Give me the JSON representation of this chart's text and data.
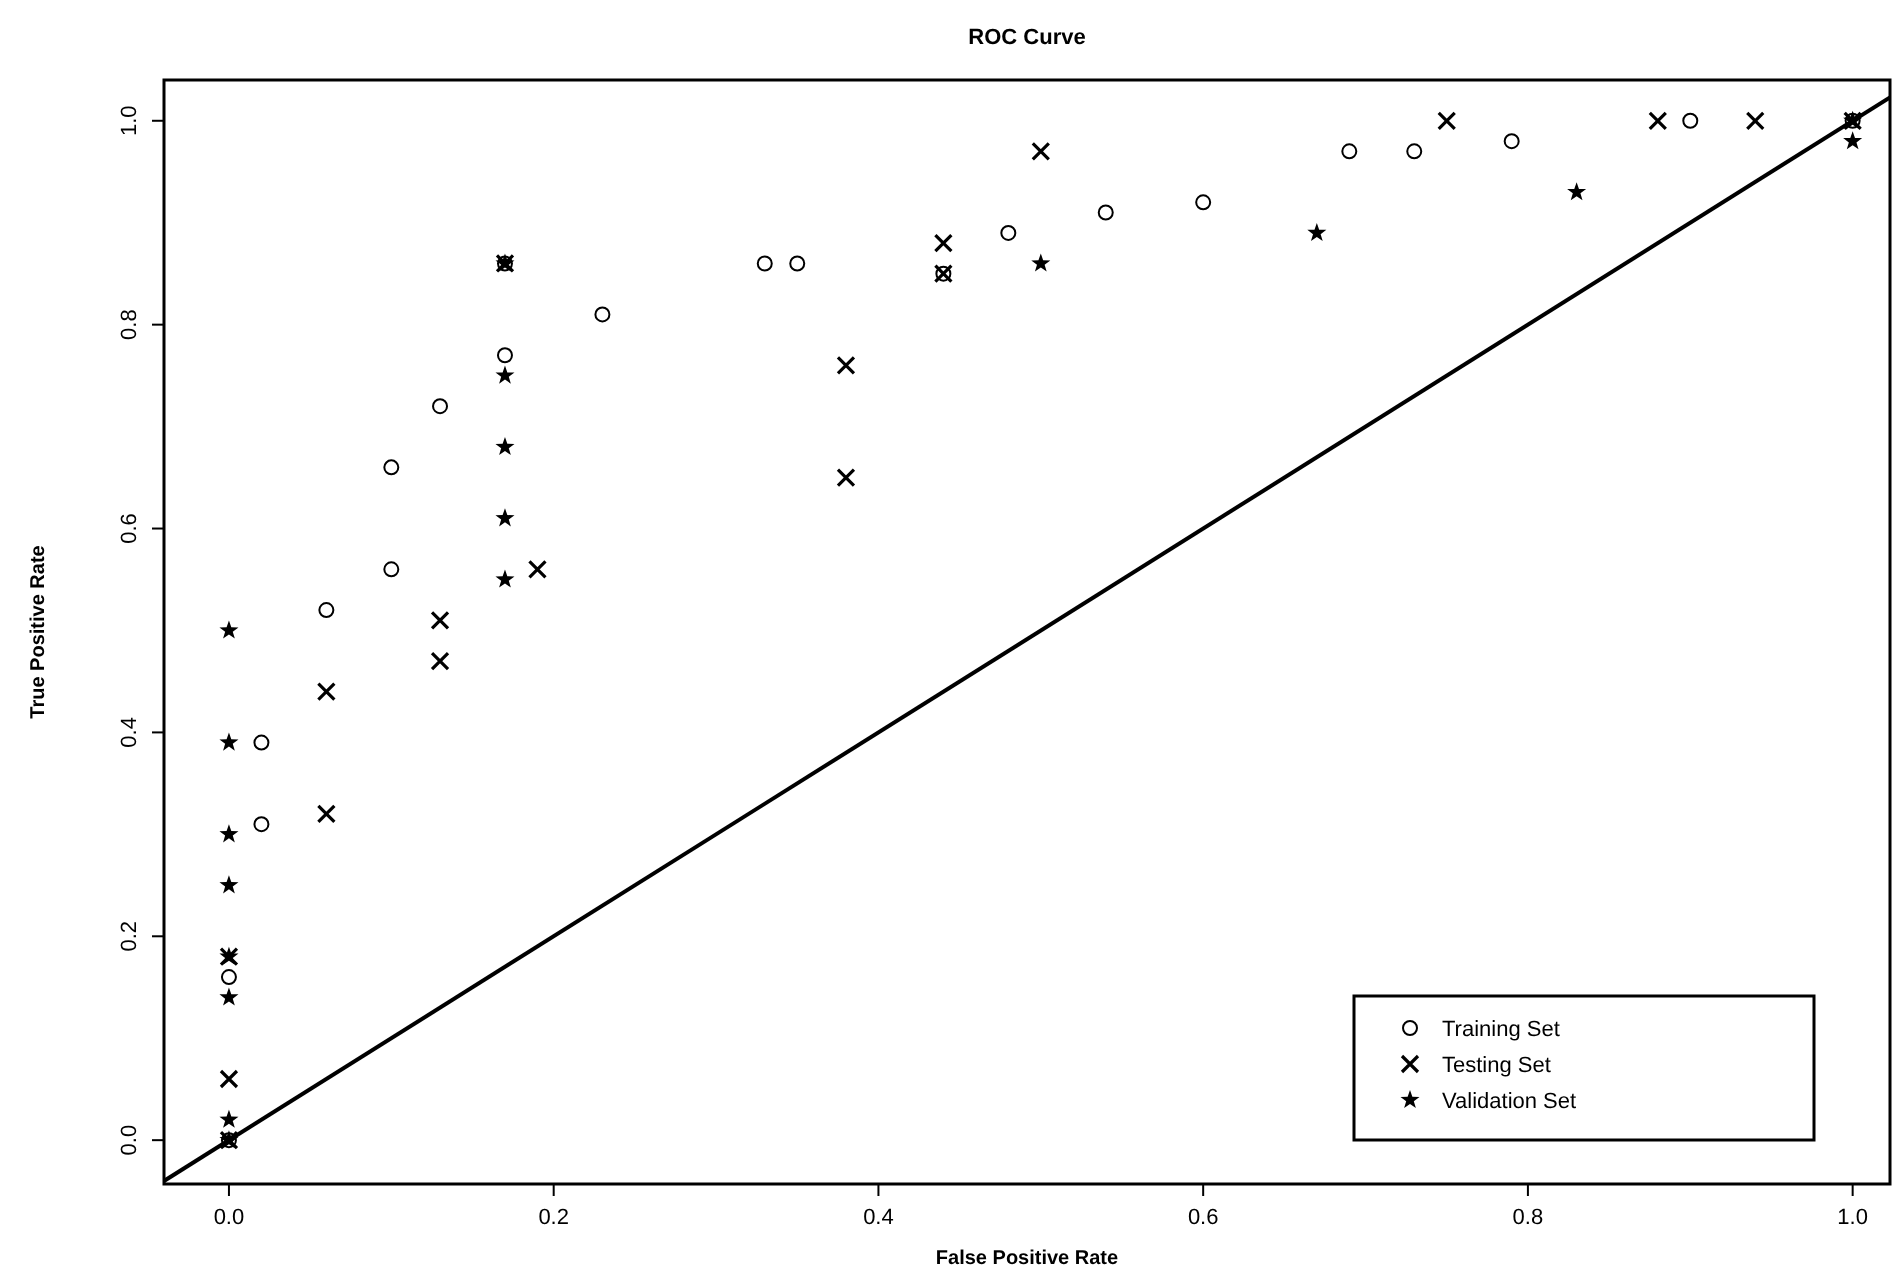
{
  "chart_data": {
    "type": "scatter",
    "title": "ROC Curve",
    "xlabel": "False Positive Rate",
    "ylabel": "True Positive Rate",
    "xlim": [
      -0.04,
      1.023
    ],
    "ylim": [
      -0.043,
      1.04
    ],
    "xticks": [
      {
        "value": 0,
        "label": "0.0"
      },
      0.2,
      0.4,
      0.6,
      0.8,
      {
        "value": 1,
        "label": "1.0"
      }
    ],
    "yticks": [
      {
        "value": 0,
        "label": "0.0"
      },
      0.2,
      0.4,
      0.6,
      0.8,
      {
        "value": 1,
        "label": "1.0"
      }
    ],
    "grid": false,
    "legend": "bottom right",
    "series": [
      {
        "name": "Training Set",
        "color": "#000000",
        "marker": "circle",
        "x": [
          0,
          0,
          0.02,
          0.02,
          0.06,
          0.1,
          0.1,
          0.13,
          0.17,
          0.17,
          0.23,
          0.33,
          0.35,
          0.44,
          0.48,
          0.54,
          0.6,
          0.69,
          0.73,
          0.79,
          0.9,
          1
        ],
        "values": [
          0,
          0.16,
          0.31,
          0.39,
          0.52,
          0.56,
          0.66,
          0.72,
          0.77,
          0.86,
          0.81,
          0.86,
          0.86,
          0.85,
          0.89,
          0.91,
          0.92,
          0.97,
          0.97,
          0.98,
          1,
          1
        ]
      },
      {
        "name": "Testing Set",
        "color": "#000000",
        "marker": "cross",
        "x": [
          0,
          0,
          0,
          0.06,
          0.06,
          0.13,
          0.13,
          0.17,
          0.19,
          0.38,
          0.38,
          0.44,
          0.44,
          0.5,
          0.75,
          0.88,
          0.94,
          1
        ],
        "values": [
          0,
          0.06,
          0.18,
          0.32,
          0.44,
          0.47,
          0.51,
          0.86,
          0.56,
          0.65,
          0.76,
          0.85,
          0.88,
          0.97,
          1,
          1,
          1,
          1
        ]
      },
      {
        "name": "Validation Set",
        "color": "#000000",
        "marker": "star",
        "x": [
          0,
          0,
          0,
          0,
          0,
          0,
          0,
          0,
          0.17,
          0.17,
          0.17,
          0.17,
          0.17,
          0.5,
          0.67,
          0.83,
          1,
          1
        ],
        "values": [
          0,
          0.02,
          0.14,
          0.18,
          0.25,
          0.3,
          0.39,
          0.5,
          0.55,
          0.61,
          0.68,
          0.75,
          0.86,
          0.86,
          0.89,
          0.93,
          0.98,
          1
        ]
      },
      {
        "type": "line",
        "color": "#000000",
        "marker": "none",
        "x": [
          -0.04,
          1.023
        ],
        "values": [
          -0.04,
          1.023
        ]
      }
    ]
  }
}
